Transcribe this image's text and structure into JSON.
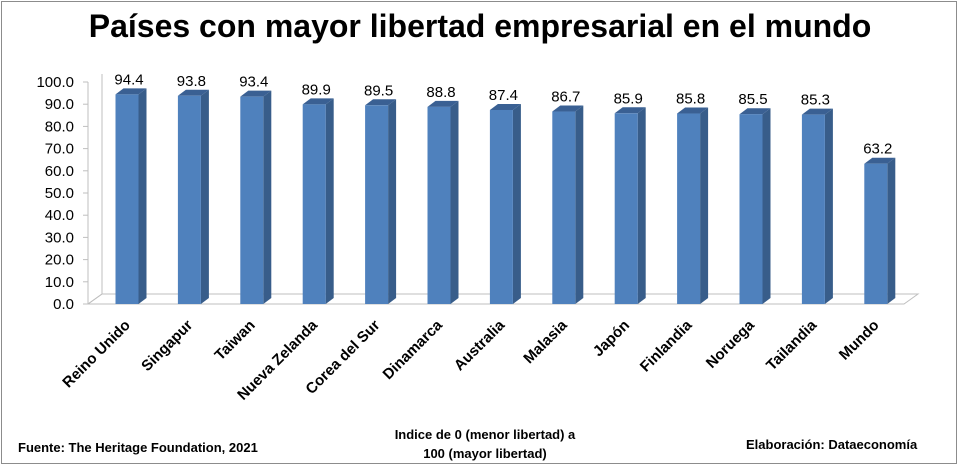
{
  "chart_data": {
    "type": "bar",
    "title": "Países con mayor libertad empresarial en el mundo",
    "categories": [
      "Reino Unido",
      "Singapur",
      "Taiwan",
      "Nueva Zelanda",
      "Corea del Sur",
      "Dinamarca",
      "Australia",
      "Malasia",
      "Japón",
      "Finlandia",
      "Noruega",
      "Tailandia",
      "Mundo"
    ],
    "values": [
      94.4,
      93.8,
      93.4,
      89.9,
      89.5,
      88.8,
      87.4,
      86.7,
      85.9,
      85.8,
      85.5,
      85.3,
      63.2
    ],
    "value_labels": [
      "94.4",
      "93.8",
      "93.4",
      "89.9",
      "89.5",
      "88.8",
      "87.4",
      "86.7",
      "85.9",
      "85.8",
      "85.5",
      "85.3",
      "63.2"
    ],
    "ylim": [
      0,
      100
    ],
    "yticks": [
      "0.0",
      "10.0",
      "20.0",
      "30.0",
      "40.0",
      "50.0",
      "60.0",
      "70.0",
      "80.0",
      "90.0",
      "100.0"
    ],
    "grid": false,
    "legend": "none",
    "bar_color": "#4f81bd",
    "bar_side_color": "#385d8a",
    "bar_top_color": "#3a6093"
  },
  "footer": {
    "source": "Fuente: The Heritage Foundation, 2021",
    "note_line1": "Indice de 0 (menor libertad) a",
    "note_line2": "100  (mayor libertad)",
    "credit": "Elaboración: Dataeconomía"
  }
}
